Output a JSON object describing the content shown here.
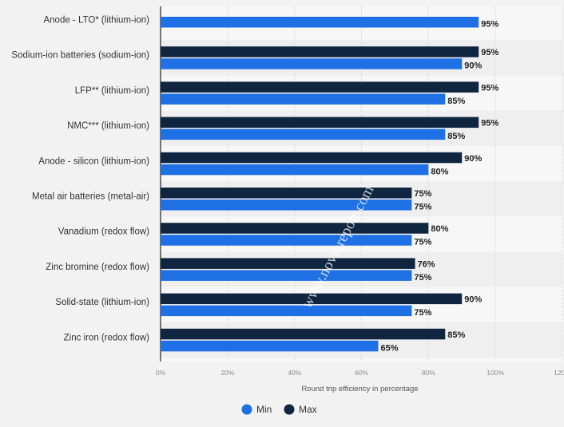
{
  "chart_data": {
    "type": "bar",
    "orientation": "horizontal",
    "categories": [
      "Anode - LTO* (lithium-ion)",
      "Sodium-ion batteries (sodium-ion)",
      "LFP** (lithium-ion)",
      "NMC*** (lithium-ion)",
      "Anode - silicon (lithium-ion)",
      "Metal air batteries (metal-air)",
      "Vanadium (redox flow)",
      "Zinc bromine (redox flow)",
      "Solid-state (lithium-ion)",
      "Zinc iron (redox flow)"
    ],
    "series": [
      {
        "name": "Max",
        "color": "#0f2540",
        "values": [
          null,
          95,
          95,
          95,
          90,
          75,
          80,
          76,
          90,
          85
        ],
        "labels": [
          "",
          "95%",
          "95%",
          "95%",
          "90%",
          "75%",
          "80%",
          "76%",
          "90%",
          "85%"
        ]
      },
      {
        "name": "Min",
        "color": "#1f6fe5",
        "values": [
          95,
          90,
          85,
          85,
          80,
          75,
          75,
          75,
          75,
          65
        ],
        "labels": [
          "95%",
          "90%",
          "85%",
          "85%",
          "80%",
          "75%",
          "75%",
          "75%",
          "75%",
          "65%"
        ]
      }
    ],
    "xlabel": "Round trip efficiency in percentage",
    "xlim": [
      0,
      120
    ],
    "xticks": [
      0,
      20,
      40,
      60,
      80,
      100,
      120
    ],
    "xtick_labels": [
      "0%",
      "20%",
      "40%",
      "60%",
      "80%",
      "100%",
      "120%"
    ],
    "legend": {
      "placement": "bottom-center",
      "order": [
        "Min",
        "Max"
      ]
    },
    "grid": true,
    "watermark": "www.novinreport.com"
  }
}
